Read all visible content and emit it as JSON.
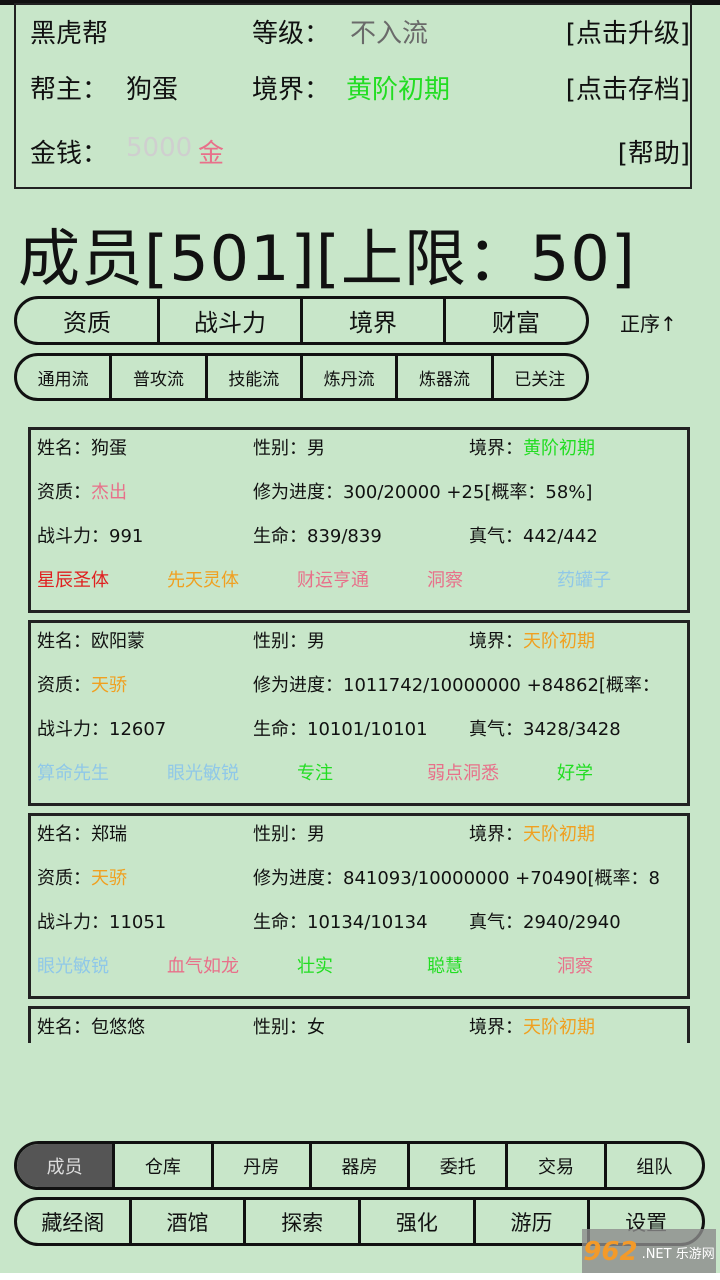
{
  "header": {
    "gang_name": "黑虎帮",
    "level_label": "等级：",
    "level_value": "不入流",
    "upgrade": "[点击升级]",
    "leader_label": "帮主：",
    "leader_value": "狗蛋",
    "realm_label": "境界：",
    "realm_value": "黄阶初期",
    "save": "[点击存档]",
    "money_label": "金钱：",
    "money_value": "5000",
    "money_unit": "金",
    "help": "[帮助]"
  },
  "title": "成员[501][上限：50]",
  "sort_tabs": [
    "资质",
    "战斗力",
    "境界",
    "财富"
  ],
  "order": "正序↑",
  "filter_tabs": [
    "通用流",
    "普攻流",
    "技能流",
    "炼丹流",
    "炼器流",
    "已关注"
  ],
  "labels": {
    "name": "姓名：",
    "gender": "性别：",
    "realm": "境界：",
    "aptitude": "资质：",
    "progress": "修为进度：",
    "power": "战斗力：",
    "hp": "生命：",
    "qi": "真气："
  },
  "members": [
    {
      "name": "狗蛋",
      "gender": "男",
      "realm": "黄阶初期",
      "realm_color": "#22dd22",
      "aptitude": "杰出",
      "aptitude_color": "#e8708a",
      "progress": "300/20000 +25[概率：58%]",
      "power": "991",
      "hp": "839/839",
      "qi": "442/442",
      "traits": [
        {
          "t": "星辰圣体",
          "c": "#e02020"
        },
        {
          "t": "先天灵体",
          "c": "#f0a020"
        },
        {
          "t": "财运亨通",
          "c": "#e8708a"
        },
        {
          "t": "洞察",
          "c": "#e8708a"
        },
        {
          "t": "药罐子",
          "c": "#90c8e8"
        }
      ]
    },
    {
      "name": "欧阳蒙",
      "gender": "男",
      "realm": "天阶初期",
      "realm_color": "#f0a020",
      "aptitude": "天骄",
      "aptitude_color": "#f0a020",
      "progress": "1011742/10000000 +84862[概率：",
      "power": "12607",
      "hp": "10101/10101",
      "qi": "3428/3428",
      "traits": [
        {
          "t": "算命先生",
          "c": "#90c8e8"
        },
        {
          "t": "眼光敏锐",
          "c": "#90c8e8"
        },
        {
          "t": "专注",
          "c": "#22dd22"
        },
        {
          "t": "弱点洞悉",
          "c": "#e8708a"
        },
        {
          "t": "好学",
          "c": "#22dd22"
        }
      ]
    },
    {
      "name": "郑瑞",
      "gender": "男",
      "realm": "天阶初期",
      "realm_color": "#f0a020",
      "aptitude": "天骄",
      "aptitude_color": "#f0a020",
      "progress": "841093/10000000 +70490[概率：8",
      "power": "11051",
      "hp": "10134/10134",
      "qi": "2940/2940",
      "traits": [
        {
          "t": "眼光敏锐",
          "c": "#90c8e8"
        },
        {
          "t": "血气如龙",
          "c": "#e8708a"
        },
        {
          "t": "壮实",
          "c": "#22dd22"
        },
        {
          "t": "聪慧",
          "c": "#22dd22"
        },
        {
          "t": "洞察",
          "c": "#e8708a"
        }
      ]
    },
    {
      "name": "包悠悠",
      "gender": "女",
      "realm": "天阶初期",
      "realm_color": "#f0a020"
    }
  ],
  "nav_row1": [
    "成员",
    "仓库",
    "丹房",
    "器房",
    "委托",
    "交易",
    "组队"
  ],
  "nav_row2": [
    "藏经阁",
    "酒馆",
    "探索",
    "强化",
    "游历",
    "设置"
  ],
  "watermark": {
    "logo": "962",
    "suffix": ".NET",
    "name": "乐游网"
  }
}
